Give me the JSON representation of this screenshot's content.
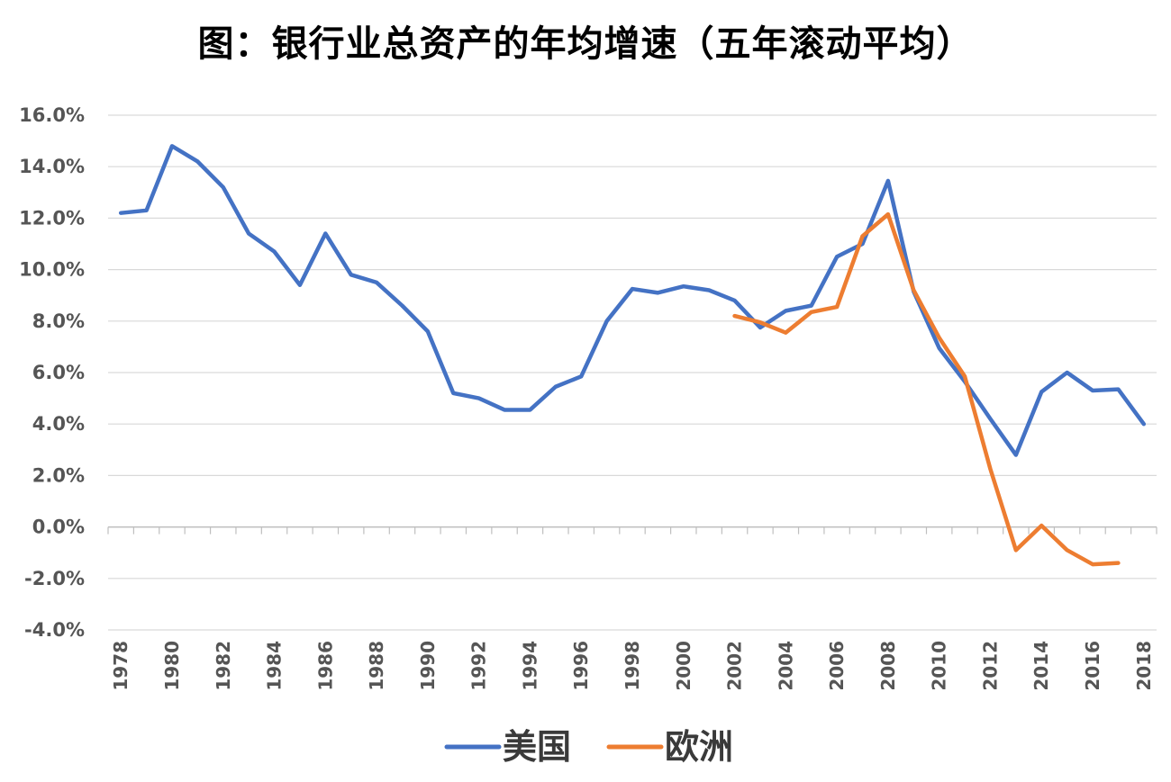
{
  "chart_data": {
    "type": "line",
    "title": "图：银行业总资产的年均增速（五年滚动平均）",
    "x": [
      1978,
      1979,
      1980,
      1981,
      1982,
      1983,
      1984,
      1985,
      1986,
      1987,
      1988,
      1989,
      1990,
      1991,
      1992,
      1993,
      1994,
      1995,
      1996,
      1997,
      1998,
      1999,
      2000,
      2001,
      2002,
      2003,
      2004,
      2005,
      2006,
      2007,
      2008,
      2009,
      2010,
      2011,
      2012,
      2013,
      2014,
      2015,
      2016,
      2017,
      2018
    ],
    "x_tick_labels": [
      "1978",
      "1980",
      "1982",
      "1984",
      "1986",
      "1988",
      "1990",
      "1992",
      "1994",
      "1996",
      "1998",
      "2000",
      "2002",
      "2004",
      "2006",
      "2008",
      "2010",
      "2012",
      "2014",
      "2016",
      "2018"
    ],
    "y_tick_labels": [
      "16.0%",
      "14.0%",
      "12.0%",
      "10.0%",
      "8.0%",
      "6.0%",
      "4.0%",
      "2.0%",
      "0.0%",
      "-2.0%",
      "-4.0%"
    ],
    "ylim": [
      -4.0,
      16.0
    ],
    "y_unit": "%",
    "grid": true,
    "legend_position": "bottom",
    "series": [
      {
        "name": "美国",
        "color": "#4472C4",
        "values": [
          12.2,
          12.3,
          14.8,
          14.2,
          13.2,
          11.4,
          10.7,
          9.4,
          11.4,
          9.8,
          9.5,
          8.6,
          7.6,
          5.2,
          5.0,
          4.55,
          4.55,
          5.45,
          5.85,
          8.0,
          9.25,
          9.1,
          9.35,
          9.2,
          8.8,
          7.75,
          8.4,
          8.6,
          10.5,
          11.0,
          13.45,
          9.15,
          6.95,
          5.65,
          4.2,
          2.8,
          5.25,
          6.0,
          5.3,
          5.35,
          4.0
        ]
      },
      {
        "name": "欧洲",
        "color": "#ED7D31",
        "values": [
          null,
          null,
          null,
          null,
          null,
          null,
          null,
          null,
          null,
          null,
          null,
          null,
          null,
          null,
          null,
          null,
          null,
          null,
          null,
          null,
          null,
          null,
          null,
          null,
          8.2,
          7.95,
          7.55,
          8.35,
          8.55,
          11.3,
          12.15,
          9.2,
          7.35,
          5.85,
          2.25,
          -0.9,
          0.05,
          -0.9,
          -1.45,
          -1.4,
          null
        ]
      }
    ]
  }
}
